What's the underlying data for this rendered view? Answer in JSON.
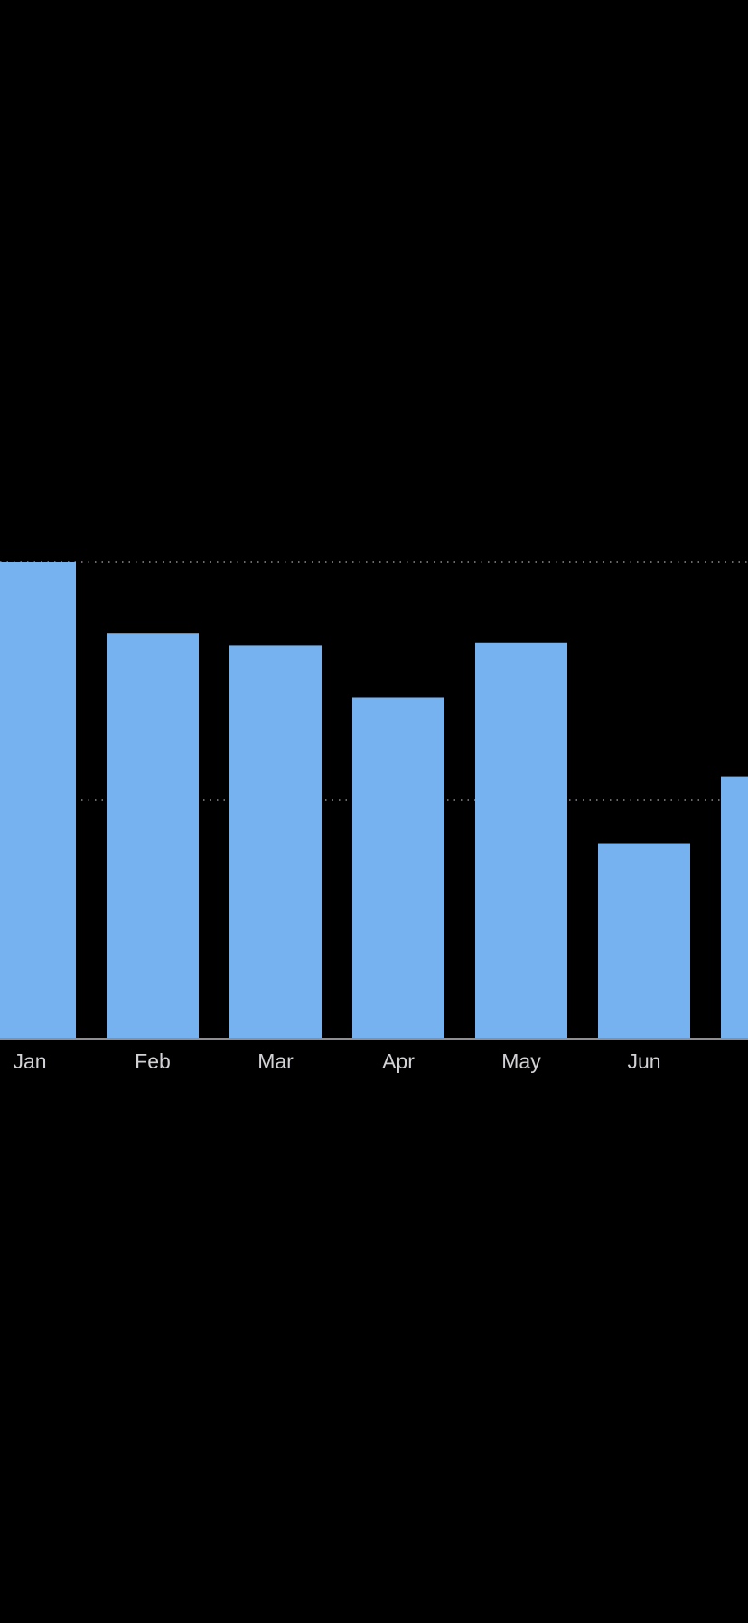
{
  "chart_data": {
    "type": "bar",
    "categories": [
      "Jan",
      "Feb",
      "Mar",
      "Apr",
      "May",
      "Jun",
      ""
    ],
    "values": [
      100,
      85,
      82.5,
      71.5,
      83,
      41,
      55
    ],
    "ylim": [
      0,
      100
    ],
    "gridlines": [
      50,
      100
    ],
    "grid": true,
    "title": "",
    "xlabel": "",
    "ylabel": "",
    "colors": {
      "bar": "#76b2f0",
      "background": "#000000",
      "gridline": "#8e8e93",
      "baseline": "#8e8e93",
      "tick_label": "#d1d1d6"
    }
  }
}
